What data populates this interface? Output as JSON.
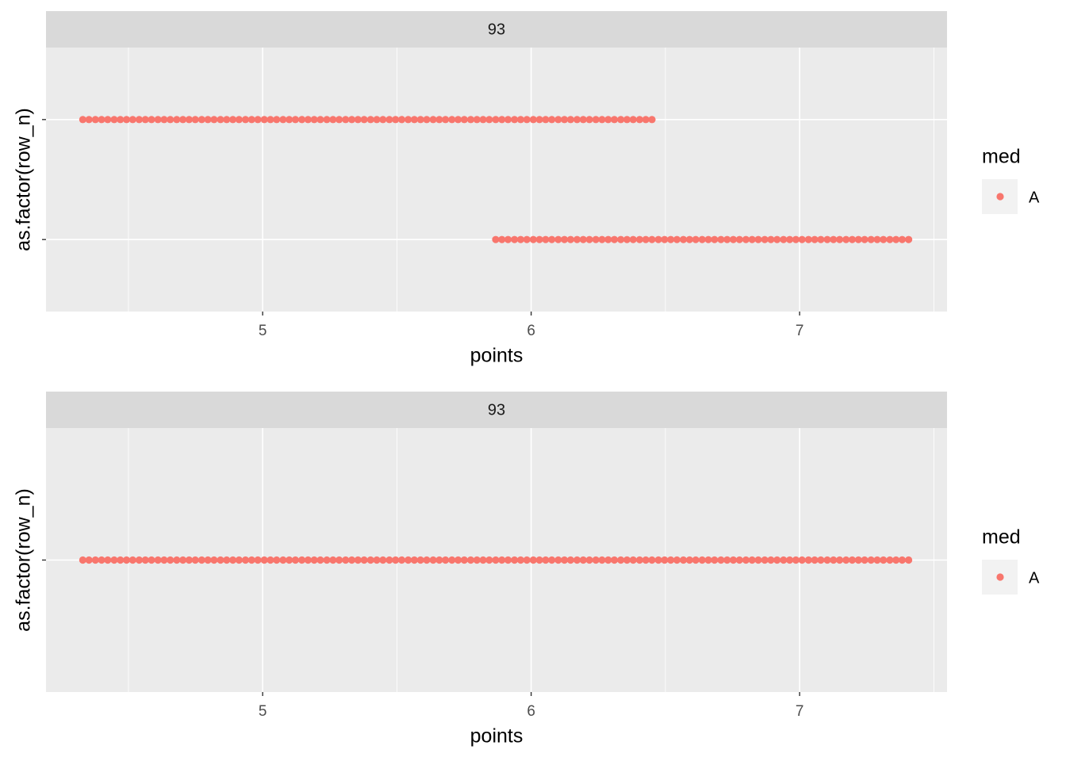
{
  "chart_data": [
    {
      "type": "scatter",
      "strip": "93",
      "xlabel": "points",
      "ylabel": "as.factor(row_n)",
      "legend_title": "med",
      "xlim": [
        4.193,
        7.549
      ],
      "xticks": [
        5,
        6,
        7
      ],
      "grid": true,
      "y_categories": [
        null,
        null
      ],
      "series": [
        {
          "name": "A",
          "color": "#F8766D",
          "rows": [
            [
              5.868,
              5.891,
              5.914,
              5.938,
              5.961,
              5.984,
              6.008,
              6.031,
              6.054,
              6.077,
              6.101,
              6.124,
              6.147,
              6.171,
              6.194,
              6.217,
              6.241,
              6.264,
              6.287,
              6.31,
              6.334,
              6.357,
              6.38,
              6.404,
              6.427,
              6.45,
              6.474,
              6.497,
              6.52,
              6.543,
              6.567,
              6.59,
              6.613,
              6.637,
              6.66,
              6.683,
              6.707,
              6.73,
              6.753,
              6.776,
              6.8,
              6.823,
              6.846,
              6.87,
              6.893,
              6.916,
              6.94,
              6.963,
              6.986,
              7.009,
              7.033,
              7.056,
              7.079,
              7.103,
              7.126,
              7.149,
              7.173,
              7.196,
              7.219,
              7.242,
              7.266,
              7.289,
              7.312,
              7.336,
              7.359,
              7.382,
              7.406
            ],
            [
              4.33,
              4.353,
              4.377,
              4.4,
              4.423,
              4.447,
              4.47,
              4.493,
              4.516,
              4.54,
              4.563,
              4.586,
              4.61,
              4.633,
              4.656,
              4.68,
              4.703,
              4.726,
              4.749,
              4.773,
              4.796,
              4.819,
              4.843,
              4.866,
              4.889,
              4.912,
              4.936,
              4.959,
              4.982,
              5.006,
              5.029,
              5.052,
              5.076,
              5.099,
              5.122,
              5.146,
              5.169,
              5.192,
              5.215,
              5.239,
              5.262,
              5.285,
              5.309,
              5.332,
              5.355,
              5.378,
              5.402,
              5.425,
              5.448,
              5.472,
              5.495,
              5.518,
              5.542,
              5.565,
              5.588,
              5.611,
              5.635,
              5.658,
              5.681,
              5.705,
              5.728,
              5.751,
              5.775,
              5.798,
              5.821,
              5.844,
              5.868,
              5.891,
              5.914,
              5.938,
              5.961,
              5.984,
              6.008,
              6.031,
              6.054,
              6.077,
              6.101,
              6.124,
              6.147,
              6.171,
              6.194,
              6.217,
              6.241,
              6.264,
              6.287,
              6.31,
              6.334,
              6.357,
              6.38,
              6.404,
              6.427,
              6.45
            ]
          ]
        }
      ]
    },
    {
      "type": "scatter",
      "strip": "93",
      "xlabel": "points",
      "ylabel": "as.factor(row_n)",
      "legend_title": "med",
      "xlim": [
        4.193,
        7.549
      ],
      "xticks": [
        5,
        6,
        7
      ],
      "grid": true,
      "y_categories": [
        null
      ],
      "series": [
        {
          "name": "A",
          "color": "#F8766D",
          "rows": [
            [
              4.33,
              4.353,
              4.377,
              4.4,
              4.423,
              4.447,
              4.47,
              4.493,
              4.516,
              4.54,
              4.563,
              4.586,
              4.61,
              4.633,
              4.656,
              4.68,
              4.703,
              4.726,
              4.749,
              4.773,
              4.796,
              4.819,
              4.843,
              4.866,
              4.889,
              4.912,
              4.936,
              4.959,
              4.982,
              5.006,
              5.029,
              5.052,
              5.076,
              5.099,
              5.122,
              5.146,
              5.169,
              5.192,
              5.215,
              5.239,
              5.262,
              5.285,
              5.309,
              5.332,
              5.355,
              5.378,
              5.402,
              5.425,
              5.448,
              5.472,
              5.495,
              5.518,
              5.542,
              5.565,
              5.588,
              5.611,
              5.635,
              5.658,
              5.681,
              5.705,
              5.728,
              5.751,
              5.775,
              5.798,
              5.821,
              5.844,
              5.868,
              5.891,
              5.914,
              5.938,
              5.961,
              5.984,
              6.008,
              6.031,
              6.054,
              6.077,
              6.101,
              6.124,
              6.147,
              6.171,
              6.194,
              6.217,
              6.241,
              6.264,
              6.287,
              6.31,
              6.334,
              6.357,
              6.38,
              6.404,
              6.427,
              6.45,
              6.474,
              6.497,
              6.52,
              6.543,
              6.567,
              6.59,
              6.613,
              6.637,
              6.66,
              6.683,
              6.707,
              6.73,
              6.753,
              6.776,
              6.8,
              6.823,
              6.846,
              6.87,
              6.893,
              6.916,
              6.94,
              6.963,
              6.986,
              7.009,
              7.033,
              7.056,
              7.079,
              7.103,
              7.126,
              7.149,
              7.173,
              7.196,
              7.219,
              7.242,
              7.266,
              7.289,
              7.312,
              7.336,
              7.359,
              7.382,
              7.406
            ]
          ]
        }
      ]
    }
  ]
}
